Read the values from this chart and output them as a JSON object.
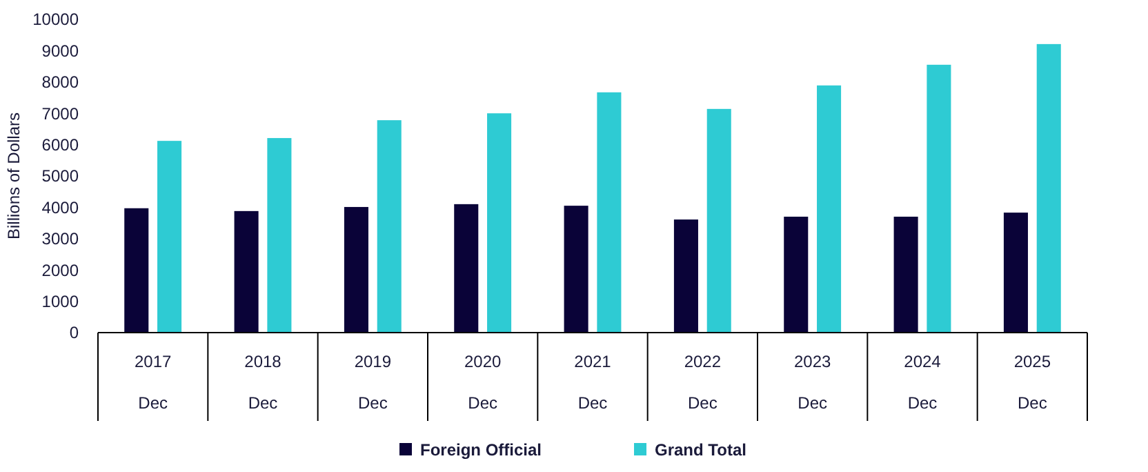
{
  "chart_data": {
    "type": "bar",
    "ylabel": "Billions of Dollars",
    "categories": [
      "2017\nDec",
      "2018\nDec",
      "2019\nDec",
      "2020\nDec",
      "2021\nDec",
      "2022\nDec",
      "2023\nDec",
      "2024\nDec",
      "2025\nDec"
    ],
    "series": [
      {
        "name": "Foreign Official",
        "color": "#0a0338",
        "values": [
          3970,
          3880,
          4010,
          4100,
          4050,
          3610,
          3700,
          3700,
          3830
        ]
      },
      {
        "name": "Grand Total",
        "color": "#2ecbd3",
        "values": [
          6120,
          6210,
          6780,
          7000,
          7670,
          7140,
          7890,
          8550,
          9210
        ]
      }
    ],
    "ylim": [
      0,
      10000
    ],
    "yticks": [
      0,
      1000,
      2000,
      3000,
      4000,
      5000,
      6000,
      7000,
      8000,
      9000,
      10000
    ],
    "grid": false,
    "legend": "bottom"
  }
}
